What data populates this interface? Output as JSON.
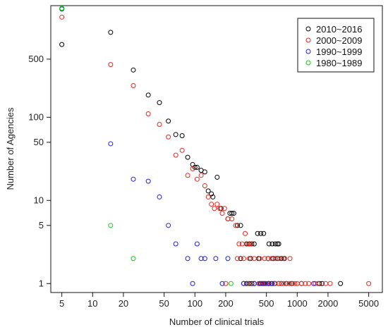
{
  "chart_data": {
    "type": "scatter",
    "title": "",
    "xlabel": "Number of clinical trials",
    "ylabel": "Number of Agencies",
    "x_scale": "log",
    "y_scale": "log",
    "xlim": [
      3.9,
      6800
    ],
    "ylim": [
      0.78,
      2200
    ],
    "x_ticks": [
      5,
      10,
      20,
      50,
      100,
      200,
      500,
      1000,
      2000,
      5000
    ],
    "x_tick_labels": [
      "5",
      "10",
      "20",
      "50",
      "100",
      "200",
      "500",
      "1000",
      "2000",
      "5000"
    ],
    "y_ticks": [
      1,
      5,
      10,
      50,
      100,
      500
    ],
    "y_tick_labels": [
      "1",
      "5",
      "10",
      "50",
      "100",
      "500"
    ],
    "grid": false,
    "legend_position": "top-right",
    "series": [
      {
        "name": "2010~2016",
        "color": "#000000",
        "points": [
          [
            5,
            750
          ],
          [
            15,
            1050
          ],
          [
            25,
            370
          ],
          [
            35,
            185
          ],
          [
            45,
            150
          ],
          [
            55,
            90
          ],
          [
            65,
            62
          ],
          [
            75,
            60
          ],
          [
            85,
            33
          ],
          [
            95,
            27
          ],
          [
            100,
            25
          ],
          [
            105,
            25
          ],
          [
            115,
            23
          ],
          [
            125,
            22
          ],
          [
            135,
            13
          ],
          [
            145,
            12
          ],
          [
            150,
            11
          ],
          [
            165,
            19
          ],
          [
            180,
            8
          ],
          [
            210,
            6
          ],
          [
            220,
            7
          ],
          [
            230,
            7
          ],
          [
            240,
            7
          ],
          [
            260,
            5
          ],
          [
            280,
            5
          ],
          [
            320,
            3
          ],
          [
            340,
            3
          ],
          [
            360,
            3
          ],
          [
            380,
            3
          ],
          [
            410,
            4
          ],
          [
            440,
            4
          ],
          [
            470,
            4
          ],
          [
            530,
            3
          ],
          [
            570,
            3
          ],
          [
            610,
            3
          ],
          [
            640,
            3
          ],
          [
            660,
            3
          ],
          [
            280,
            2
          ],
          [
            350,
            2
          ],
          [
            420,
            2
          ],
          [
            520,
            2
          ],
          [
            580,
            2
          ],
          [
            640,
            2
          ],
          [
            700,
            2
          ],
          [
            750,
            2
          ],
          [
            300,
            1
          ],
          [
            320,
            1
          ],
          [
            340,
            1
          ],
          [
            360,
            1
          ],
          [
            380,
            1
          ],
          [
            440,
            1
          ],
          [
            470,
            1
          ],
          [
            520,
            1
          ],
          [
            560,
            1
          ],
          [
            600,
            1
          ],
          [
            660,
            1
          ],
          [
            700,
            1
          ],
          [
            780,
            1
          ],
          [
            880,
            1
          ],
          [
            1100,
            1
          ],
          [
            1650,
            1
          ],
          [
            1750,
            1
          ],
          [
            2650,
            1
          ]
        ]
      },
      {
        "name": "2000~2009",
        "color": "#e8281f",
        "points": [
          [
            5,
            1600
          ],
          [
            15,
            430
          ],
          [
            25,
            240
          ],
          [
            35,
            110
          ],
          [
            45,
            82
          ],
          [
            55,
            58
          ],
          [
            65,
            35
          ],
          [
            75,
            40
          ],
          [
            85,
            20
          ],
          [
            95,
            24
          ],
          [
            105,
            18
          ],
          [
            115,
            20
          ],
          [
            125,
            15
          ],
          [
            135,
            11
          ],
          [
            145,
            9
          ],
          [
            155,
            8
          ],
          [
            165,
            9
          ],
          [
            175,
            8
          ],
          [
            185,
            7
          ],
          [
            195,
            8
          ],
          [
            210,
            6
          ],
          [
            230,
            6
          ],
          [
            250,
            5
          ],
          [
            270,
            3
          ],
          [
            290,
            3
          ],
          [
            310,
            4
          ],
          [
            330,
            3
          ],
          [
            350,
            3
          ],
          [
            260,
            2
          ],
          [
            300,
            2
          ],
          [
            340,
            2
          ],
          [
            380,
            2
          ],
          [
            430,
            2
          ],
          [
            480,
            2
          ],
          [
            520,
            2
          ],
          [
            560,
            2
          ],
          [
            610,
            2
          ],
          [
            660,
            2
          ],
          [
            730,
            2
          ],
          [
            850,
            2
          ],
          [
            200,
            1
          ],
          [
            330,
            1
          ],
          [
            380,
            1
          ],
          [
            420,
            1
          ],
          [
            450,
            1
          ],
          [
            480,
            1
          ],
          [
            500,
            1
          ],
          [
            530,
            1
          ],
          [
            570,
            1
          ],
          [
            610,
            1
          ],
          [
            660,
            1
          ],
          [
            700,
            1
          ],
          [
            740,
            1
          ],
          [
            790,
            1
          ],
          [
            840,
            1
          ],
          [
            900,
            1
          ],
          [
            950,
            1
          ],
          [
            1000,
            1
          ],
          [
            1100,
            1
          ],
          [
            1200,
            1
          ],
          [
            1300,
            1
          ],
          [
            1500,
            1
          ],
          [
            1600,
            1
          ],
          [
            1900,
            1
          ],
          [
            2100,
            1
          ],
          [
            5000,
            1
          ]
        ]
      },
      {
        "name": "1990~1999",
        "color": "#2020e0",
        "points": [
          [
            5,
            2000
          ],
          [
            15,
            48
          ],
          [
            25,
            18
          ],
          [
            35,
            17
          ],
          [
            45,
            11
          ],
          [
            55,
            5
          ],
          [
            65,
            3
          ],
          [
            85,
            2
          ],
          [
            95,
            1
          ],
          [
            105,
            3
          ],
          [
            115,
            2
          ],
          [
            125,
            2
          ],
          [
            160,
            2
          ],
          [
            185,
            1
          ],
          [
            210,
            2
          ],
          [
            300,
            1
          ],
          [
            380,
            1
          ],
          [
            430,
            1
          ],
          [
            460,
            1
          ],
          [
            490,
            1
          ],
          [
            530,
            1
          ],
          [
            570,
            1
          ],
          [
            1450,
            1
          ]
        ]
      },
      {
        "name": "1980~1989",
        "color": "#12cc12",
        "points": [
          [
            5,
            2050
          ],
          [
            15,
            5
          ],
          [
            25,
            2
          ],
          [
            225,
            1
          ]
        ]
      }
    ]
  }
}
